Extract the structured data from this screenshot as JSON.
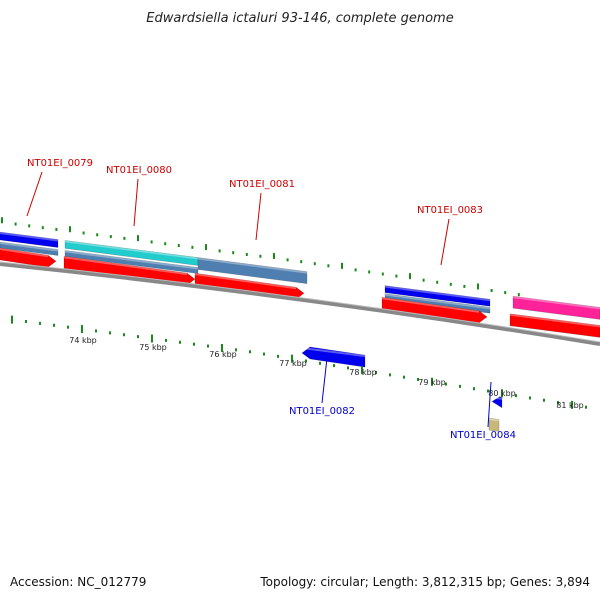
{
  "title": "Edwardsiella ictaluri 93-146, complete genome",
  "footer": {
    "accession": "Accession: NC_012779",
    "summary": "Topology: circular; Length: 3,812,315 bp; Genes: 3,894"
  },
  "colors": {
    "plus_label": "#cc0000",
    "minus_label": "#0000cc",
    "cds_red": "#ff0000",
    "blue": "#0000ee",
    "steelblue": "#4f7fb0",
    "cyan": "#22cccc",
    "magenta": "#ff2299",
    "khaki": "#c8b87a",
    "tick_green": "#1a8a1a",
    "backbone": "#888888"
  },
  "axis_labels": [
    "74 kbp",
    "75 kbp",
    "76 kbp",
    "77 kbp",
    "78 kbp",
    "79 kbp",
    "80 kbp",
    "81 kbp"
  ],
  "gene_labels": [
    {
      "text": "NT01EI_0079",
      "strand": "plus"
    },
    {
      "text": "NT01EI_0080",
      "strand": "plus"
    },
    {
      "text": "NT01EI_0081",
      "strand": "plus"
    },
    {
      "text": "NT01EI_0083",
      "strand": "plus"
    },
    {
      "text": "NT01EI_0082",
      "strand": "minus"
    },
    {
      "text": "NT01EI_0084",
      "strand": "minus"
    }
  ]
}
